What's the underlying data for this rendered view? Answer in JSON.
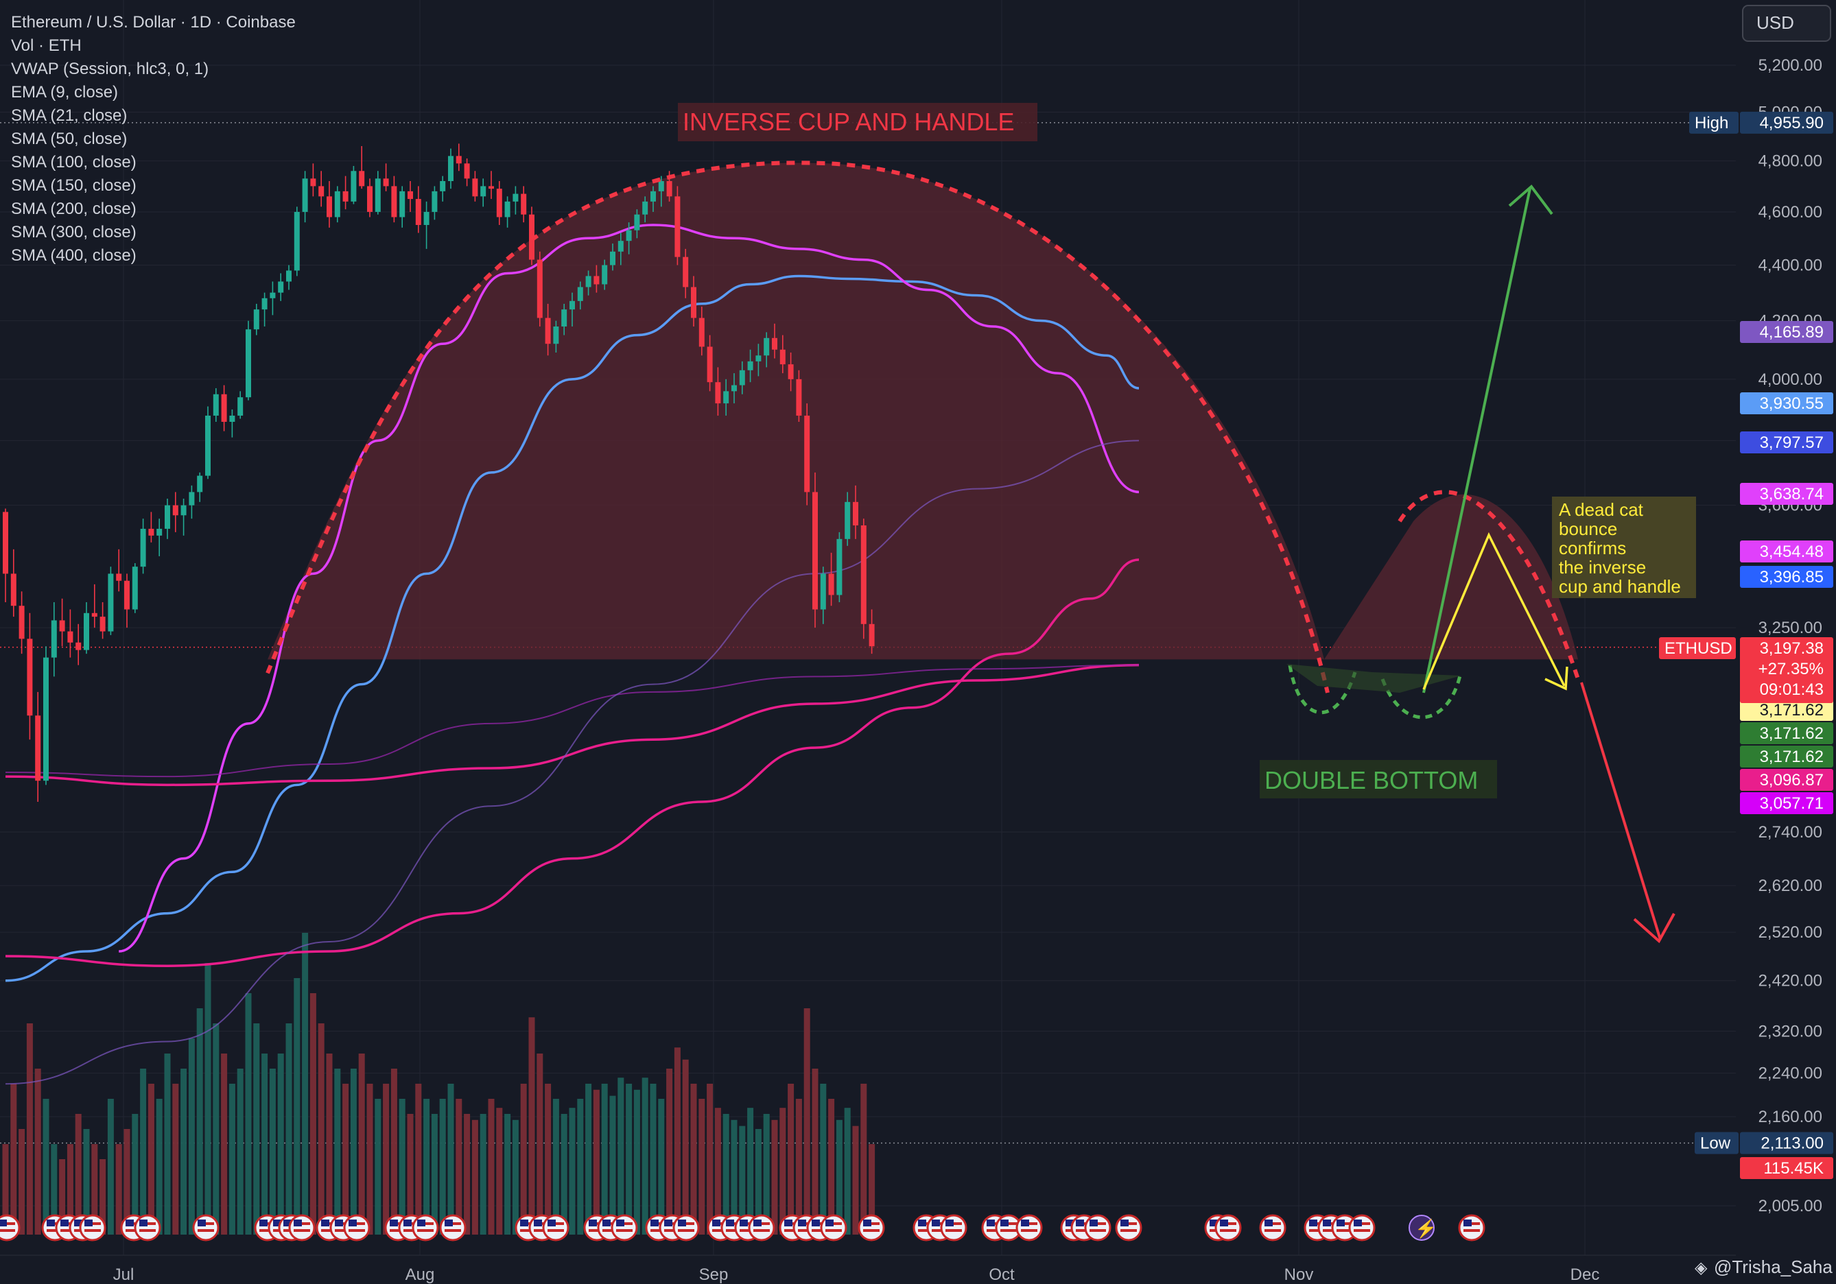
{
  "header": {
    "title": "Ethereum / U.S. Dollar · 1D · Coinbase",
    "indicators": [
      "Vol · ETH",
      "VWAP (Session, hlc3, 0, 1)",
      "EMA (9, close)",
      "SMA (21, close)",
      "SMA (50, close)",
      "SMA (100, close)",
      "SMA (150, close)",
      "SMA (200, close)",
      "SMA (300, close)",
      "SMA (400, close)"
    ],
    "currency_button": "USD"
  },
  "colors": {
    "background": "#161a25",
    "up": "#22ab94",
    "down": "#f23645",
    "cup_fill": "#5a2530",
    "sma50": "#5b9cf6",
    "sma200": "#e91e8c",
    "sma300": "#9c27b0",
    "annotation_bg": "#4a4725",
    "annotation_text": "#ffeb3b"
  },
  "annotations": {
    "cup_title": "INVERSE CUP AND HANDLE",
    "double_bottom": "DOUBLE BOTTOM",
    "note_lines": [
      "A dead cat",
      "bounce",
      "confirms",
      "the inverse",
      "cup and handle"
    ]
  },
  "footer": {
    "author": "@Trisha_Saha"
  },
  "chart_data": {
    "type": "candlestick",
    "symbol": "ETHUSD",
    "x_axis": {
      "labels": [
        "Jul",
        "Aug",
        "Sep",
        "Oct",
        "Nov",
        "Dec"
      ]
    },
    "y_axis": {
      "scale": "log",
      "ticks": [
        "5,200.00",
        "5,000.00",
        "4,800.00",
        "4,600.00",
        "4,400.00",
        "4,200.00",
        "4,000.00",
        "3,800.00",
        "3,600.00",
        "3,250.00",
        "2,740.00",
        "2,620.00",
        "2,520.00",
        "2,420.00",
        "2,320.00",
        "2,240.00",
        "2,160.00",
        "2,005.00"
      ]
    },
    "high": {
      "label": "High",
      "value": "4,955.90"
    },
    "low": {
      "label": "Low",
      "value": "2,113.00"
    },
    "last_price": {
      "symbol": "ETHUSD",
      "price": "3,197.38",
      "change": "+27.35%",
      "countdown": "09:01:43"
    },
    "volume_last": "115.45K",
    "price_tags": [
      {
        "value": "4,165.89",
        "color": "#7e57c2"
      },
      {
        "value": "3,930.55",
        "color": "#5b9cf6"
      },
      {
        "value": "3,797.57",
        "color": "#3d4de0"
      },
      {
        "value": "3,638.74",
        "color": "#e040fb"
      },
      {
        "value": "3,454.48",
        "color": "#e040fb"
      },
      {
        "value": "3,396.85",
        "color": "#2962ff"
      },
      {
        "value": "3,171.62",
        "color": "#fff59d"
      },
      {
        "value": "3,171.62",
        "color": "#2e7d32"
      },
      {
        "value": "3,171.62",
        "color": "#2e7d32"
      },
      {
        "value": "3,096.87",
        "color": "#e91e8c"
      },
      {
        "value": "3,057.71",
        "color": "#d500f9"
      }
    ],
    "candles": [
      [
        3580,
        3590,
        3320,
        3400
      ],
      [
        3400,
        3470,
        3280,
        3310
      ],
      [
        3310,
        3350,
        3180,
        3220
      ],
      [
        3220,
        3290,
        2960,
        3020
      ],
      [
        3020,
        3080,
        2810,
        2860
      ],
      [
        2860,
        3200,
        2850,
        3170
      ],
      [
        3170,
        3320,
        3120,
        3270
      ],
      [
        3270,
        3330,
        3200,
        3240
      ],
      [
        3240,
        3300,
        3170,
        3210
      ],
      [
        3210,
        3260,
        3150,
        3190
      ],
      [
        3190,
        3320,
        3180,
        3290
      ],
      [
        3290,
        3370,
        3250,
        3280
      ],
      [
        3280,
        3320,
        3220,
        3240
      ],
      [
        3240,
        3420,
        3230,
        3400
      ],
      [
        3400,
        3470,
        3350,
        3380
      ],
      [
        3380,
        3400,
        3250,
        3300
      ],
      [
        3300,
        3430,
        3290,
        3420
      ],
      [
        3420,
        3560,
        3400,
        3530
      ],
      [
        3530,
        3580,
        3490,
        3510
      ],
      [
        3510,
        3560,
        3450,
        3530
      ],
      [
        3530,
        3620,
        3500,
        3600
      ],
      [
        3600,
        3640,
        3520,
        3570
      ],
      [
        3570,
        3620,
        3510,
        3600
      ],
      [
        3600,
        3660,
        3560,
        3640
      ],
      [
        3640,
        3700,
        3610,
        3690
      ],
      [
        3690,
        3910,
        3680,
        3880
      ],
      [
        3880,
        3970,
        3860,
        3950
      ],
      [
        3950,
        3980,
        3830,
        3860
      ],
      [
        3860,
        3900,
        3810,
        3880
      ],
      [
        3880,
        3960,
        3870,
        3940
      ],
      [
        3940,
        4200,
        3930,
        4170
      ],
      [
        4170,
        4260,
        4150,
        4240
      ],
      [
        4240,
        4300,
        4180,
        4280
      ],
      [
        4280,
        4340,
        4220,
        4300
      ],
      [
        4300,
        4370,
        4270,
        4340
      ],
      [
        4340,
        4400,
        4310,
        4380
      ],
      [
        4380,
        4620,
        4360,
        4600
      ],
      [
        4600,
        4760,
        4560,
        4730
      ],
      [
        4730,
        4790,
        4660,
        4700
      ],
      [
        4700,
        4760,
        4620,
        4660
      ],
      [
        4660,
        4720,
        4540,
        4580
      ],
      [
        4580,
        4700,
        4560,
        4680
      ],
      [
        4680,
        4740,
        4610,
        4640
      ],
      [
        4640,
        4780,
        4630,
        4760
      ],
      [
        4760,
        4860,
        4690,
        4700
      ],
      [
        4700,
        4730,
        4580,
        4600
      ],
      [
        4600,
        4760,
        4590,
        4730
      ],
      [
        4730,
        4790,
        4680,
        4700
      ],
      [
        4700,
        4740,
        4560,
        4580
      ],
      [
        4580,
        4700,
        4540,
        4680
      ],
      [
        4680,
        4720,
        4600,
        4650
      ],
      [
        4650,
        4700,
        4520,
        4550
      ],
      [
        4550,
        4640,
        4460,
        4600
      ],
      [
        4600,
        4700,
        4570,
        4680
      ],
      [
        4680,
        4740,
        4640,
        4720
      ],
      [
        4720,
        4850,
        4690,
        4820
      ],
      [
        4820,
        4870,
        4760,
        4790
      ],
      [
        4790,
        4810,
        4700,
        4730
      ],
      [
        4730,
        4760,
        4640,
        4660
      ],
      [
        4660,
        4730,
        4620,
        4700
      ],
      [
        4700,
        4760,
        4650,
        4690
      ],
      [
        4690,
        4720,
        4550,
        4580
      ],
      [
        4580,
        4660,
        4540,
        4640
      ],
      [
        4640,
        4700,
        4590,
        4670
      ],
      [
        4670,
        4700,
        4560,
        4590
      ],
      [
        4590,
        4620,
        4400,
        4420
      ],
      [
        4420,
        4450,
        4180,
        4210
      ],
      [
        4210,
        4260,
        4080,
        4120
      ],
      [
        4120,
        4200,
        4090,
        4180
      ],
      [
        4180,
        4260,
        4150,
        4240
      ],
      [
        4240,
        4300,
        4180,
        4270
      ],
      [
        4270,
        4340,
        4240,
        4320
      ],
      [
        4320,
        4380,
        4290,
        4360
      ],
      [
        4360,
        4400,
        4300,
        4330
      ],
      [
        4330,
        4420,
        4310,
        4400
      ],
      [
        4400,
        4480,
        4380,
        4450
      ],
      [
        4450,
        4520,
        4400,
        4490
      ],
      [
        4490,
        4560,
        4440,
        4530
      ],
      [
        4530,
        4610,
        4500,
        4590
      ],
      [
        4590,
        4660,
        4560,
        4640
      ],
      [
        4640,
        4700,
        4600,
        4680
      ],
      [
        4680,
        4740,
        4620,
        4720
      ],
      [
        4720,
        4760,
        4640,
        4660
      ],
      [
        4660,
        4700,
        4400,
        4430
      ],
      [
        4430,
        4460,
        4280,
        4320
      ],
      [
        4320,
        4360,
        4180,
        4210
      ],
      [
        4210,
        4250,
        4080,
        4110
      ],
      [
        4110,
        4150,
        3960,
        3990
      ],
      [
        3990,
        4040,
        3880,
        3920
      ],
      [
        3920,
        4000,
        3880,
        3960
      ],
      [
        3960,
        4020,
        3920,
        3980
      ],
      [
        3980,
        4060,
        3950,
        4030
      ],
      [
        4030,
        4100,
        3990,
        4060
      ],
      [
        4060,
        4120,
        4010,
        4080
      ],
      [
        4080,
        4160,
        4040,
        4140
      ],
      [
        4140,
        4190,
        4070,
        4100
      ],
      [
        4100,
        4150,
        4020,
        4050
      ],
      [
        4050,
        4090,
        3960,
        4000
      ],
      [
        4000,
        4030,
        3860,
        3880
      ],
      [
        3880,
        3920,
        3600,
        3640
      ],
      [
        3640,
        3700,
        3250,
        3300
      ],
      [
        3300,
        3420,
        3260,
        3400
      ],
      [
        3400,
        3460,
        3310,
        3340
      ],
      [
        3340,
        3520,
        3320,
        3500
      ],
      [
        3500,
        3640,
        3480,
        3610
      ],
      [
        3610,
        3660,
        3500,
        3540
      ],
      [
        3540,
        3560,
        3220,
        3260
      ],
      [
        3260,
        3300,
        3180,
        3200
      ]
    ],
    "volume_series": "relative volume per candle (0-1)",
    "volume": [
      0.3,
      0.5,
      0.35,
      0.7,
      0.55,
      0.45,
      0.3,
      0.25,
      0.3,
      0.4,
      0.35,
      0.3,
      0.25,
      0.45,
      0.3,
      0.35,
      0.4,
      0.55,
      0.5,
      0.45,
      0.6,
      0.5,
      0.55,
      0.65,
      0.75,
      0.9,
      0.7,
      0.6,
      0.5,
      0.55,
      0.8,
      0.7,
      0.6,
      0.55,
      0.6,
      0.7,
      0.85,
      1.0,
      0.8,
      0.7,
      0.6,
      0.55,
      0.5,
      0.55,
      0.6,
      0.5,
      0.45,
      0.5,
      0.55,
      0.45,
      0.4,
      0.5,
      0.45,
      0.4,
      0.45,
      0.5,
      0.45,
      0.4,
      0.38,
      0.4,
      0.45,
      0.42,
      0.4,
      0.38,
      0.5,
      0.72,
      0.6,
      0.5,
      0.45,
      0.4,
      0.42,
      0.45,
      0.5,
      0.48,
      0.5,
      0.46,
      0.52,
      0.5,
      0.48,
      0.52,
      0.5,
      0.45,
      0.55,
      0.62,
      0.58,
      0.5,
      0.45,
      0.5,
      0.42,
      0.4,
      0.38,
      0.36,
      0.42,
      0.35,
      0.4,
      0.38,
      0.42,
      0.5,
      0.45,
      0.75,
      0.55,
      0.5,
      0.45,
      0.38,
      0.42,
      0.36,
      0.5,
      0.3
    ],
    "moving_averages": [
      {
        "name": "SMA (50, close)",
        "color": "#5b9cf6",
        "points": [
          [
            0,
            2420
          ],
          [
            10,
            2480
          ],
          [
            20,
            2560
          ],
          [
            28,
            2650
          ],
          [
            36,
            2850
          ],
          [
            44,
            3100
          ],
          [
            52,
            3400
          ],
          [
            60,
            3700
          ],
          [
            70,
            4000
          ],
          [
            78,
            4150
          ],
          [
            86,
            4260
          ],
          [
            92,
            4330
          ],
          [
            98,
            4360
          ],
          [
            104,
            4350
          ],
          [
            112,
            4340
          ],
          [
            120,
            4290
          ],
          [
            128,
            4200
          ],
          [
            136,
            4080
          ],
          [
            140,
            3970
          ]
        ]
      },
      {
        "name": "SMA (21, close)",
        "color": "#e040fb",
        "points": [
          [
            14,
            2480
          ],
          [
            22,
            2680
          ],
          [
            30,
            3000
          ],
          [
            38,
            3400
          ],
          [
            46,
            3800
          ],
          [
            54,
            4120
          ],
          [
            62,
            4370
          ],
          [
            72,
            4500
          ],
          [
            80,
            4550
          ],
          [
            90,
            4500
          ],
          [
            98,
            4460
          ],
          [
            106,
            4420
          ],
          [
            114,
            4310
          ],
          [
            122,
            4180
          ],
          [
            130,
            4020
          ],
          [
            140,
            3640
          ]
        ]
      },
      {
        "name": "SMA (200, close)",
        "color": "#e91e8c",
        "points": [
          [
            0,
            2470
          ],
          [
            20,
            2450
          ],
          [
            40,
            2480
          ],
          [
            56,
            2560
          ],
          [
            70,
            2680
          ],
          [
            86,
            2810
          ],
          [
            100,
            2940
          ],
          [
            112,
            3040
          ],
          [
            124,
            3180
          ],
          [
            134,
            3330
          ],
          [
            140,
            3440
          ]
        ]
      },
      {
        "name": "SMA (300, close)",
        "color": "#e91e8c",
        "points": [
          [
            0,
            2870
          ],
          [
            20,
            2850
          ],
          [
            40,
            2860
          ],
          [
            60,
            2890
          ],
          [
            80,
            2960
          ],
          [
            100,
            3050
          ],
          [
            120,
            3110
          ],
          [
            140,
            3150
          ]
        ]
      },
      {
        "name": "SMA (100, close)",
        "color": "#9c27b0",
        "points": [
          [
            0,
            2880
          ],
          [
            20,
            2870
          ],
          [
            40,
            2900
          ],
          [
            60,
            3000
          ],
          [
            80,
            3080
          ],
          [
            100,
            3120
          ],
          [
            120,
            3140
          ],
          [
            140,
            3150
          ]
        ]
      },
      {
        "name": "SMA (150, close)",
        "color": "#7e57c2",
        "points": [
          [
            0,
            2220
          ],
          [
            20,
            2300
          ],
          [
            40,
            2500
          ],
          [
            60,
            2800
          ],
          [
            80,
            3100
          ],
          [
            100,
            3400
          ],
          [
            120,
            3650
          ],
          [
            140,
            3800
          ]
        ]
      }
    ]
  }
}
